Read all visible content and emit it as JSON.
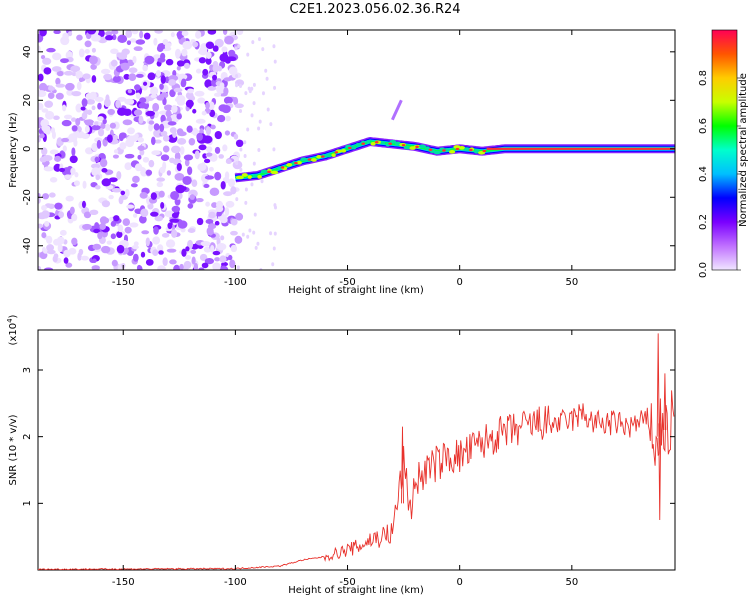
{
  "title": "C2E1.2023.056.02.36.R24",
  "chart_data": [
    {
      "type": "heatmap",
      "title": "C2E1.2023.056.02.36.R24",
      "xlabel": "Height of straight line (km)",
      "ylabel": "Frequency (Hz)",
      "xlim": [
        -188,
        96
      ],
      "ylim": [
        -50,
        49
      ],
      "xticks": [
        -150,
        -100,
        -50,
        0,
        50
      ],
      "yticks": [
        -40,
        -20,
        0,
        20,
        40
      ],
      "colorbar": {
        "label": "Normalized spectral amplitude",
        "range": [
          0,
          1
        ],
        "ticks": [
          "0.0",
          "0.2",
          "0.4",
          "0.6",
          "0.8"
        ],
        "colors": [
          "#f0e6ff",
          "#c070ff",
          "#7a00ff",
          "#0000ff",
          "#00bfff",
          "#00ffcc",
          "#00ff00",
          "#c8ff00",
          "#ffcc00",
          "#ff5500",
          "#ff0055"
        ]
      },
      "ridge": {
        "description_points_x": [
          -100,
          -90,
          -80,
          -70,
          -60,
          -50,
          -40,
          -30,
          -20,
          -10,
          0,
          10,
          20,
          50,
          80,
          96
        ],
        "description_points_y": [
          -12,
          -11,
          -8,
          -5,
          -3,
          0,
          3,
          2,
          1,
          -1,
          0,
          -1,
          0,
          0,
          0,
          0
        ]
      },
      "noise_region_x": [
        -188,
        -100
      ]
    },
    {
      "type": "line",
      "xlabel": "Height of straight line (km)",
      "ylabel": "SNR (10 * v/v)",
      "y_scale_label": "(x10",
      "y_scale_exp": "4",
      "xlim": [
        -188,
        96
      ],
      "ylim": [
        0,
        3.6
      ],
      "xticks": [
        -150,
        -100,
        -50,
        0,
        50
      ],
      "yticks": [
        1,
        2,
        3
      ],
      "series": [
        {
          "name": "SNR",
          "color": "#e8322c",
          "x": [
            -188,
            -100,
            -80,
            -70,
            -60,
            -50,
            -45,
            -40,
            -35,
            -30,
            -27,
            -25,
            -22,
            -20,
            -15,
            -10,
            -5,
            0,
            5,
            10,
            15,
            20,
            25,
            30,
            35,
            40,
            45,
            50,
            55,
            60,
            65,
            70,
            75,
            80,
            85,
            88,
            90,
            92,
            94,
            96
          ],
          "y": [
            0.01,
            0.02,
            0.06,
            0.15,
            0.2,
            0.3,
            0.35,
            0.45,
            0.5,
            0.55,
            1.2,
            1.6,
            0.9,
            1.3,
            1.5,
            1.6,
            1.7,
            1.7,
            1.8,
            1.9,
            2.0,
            2.05,
            2.1,
            2.15,
            2.2,
            2.2,
            2.2,
            2.25,
            2.35,
            2.2,
            2.2,
            2.2,
            2.15,
            2.2,
            2.25,
            1.7,
            2.3,
            2.0,
            2.2,
            2.1
          ]
        }
      ]
    }
  ]
}
